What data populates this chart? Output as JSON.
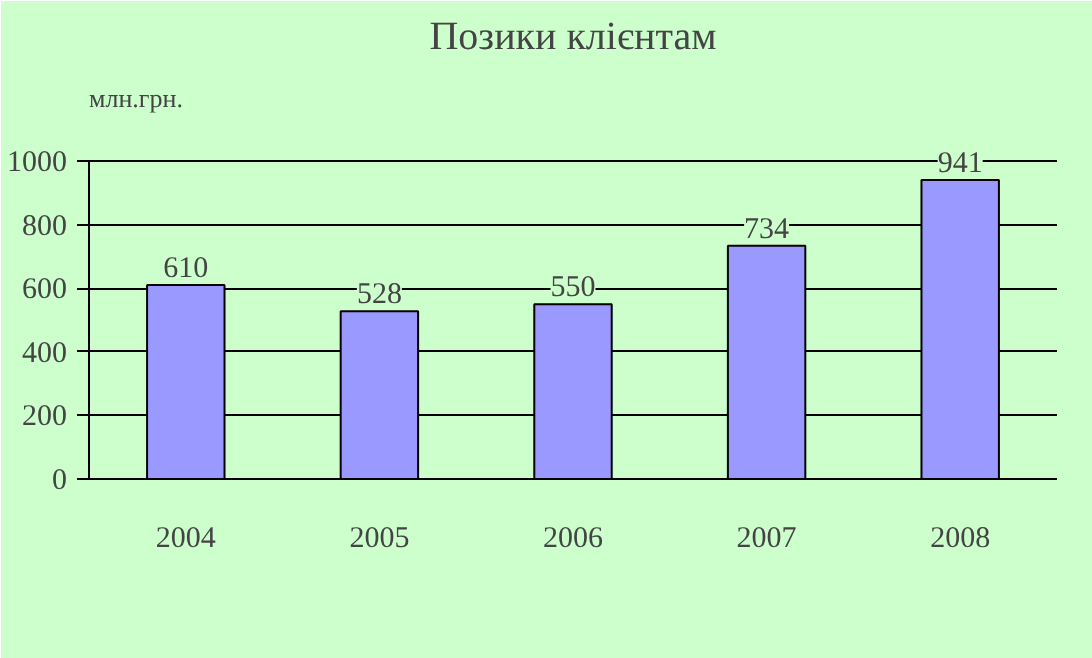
{
  "chart_data": {
    "type": "bar",
    "title": "Позики клієнтам",
    "ylabel": "млн.грн.",
    "categories": [
      "2004",
      "2005",
      "2006",
      "2007",
      "2008"
    ],
    "values": [
      610,
      528,
      550,
      734,
      941
    ],
    "color": "#9999ff",
    "ylim": [
      0,
      1000
    ],
    "yticks": [
      0,
      200,
      400,
      600,
      800,
      1000
    ],
    "grid": "y",
    "data_labels": true
  }
}
